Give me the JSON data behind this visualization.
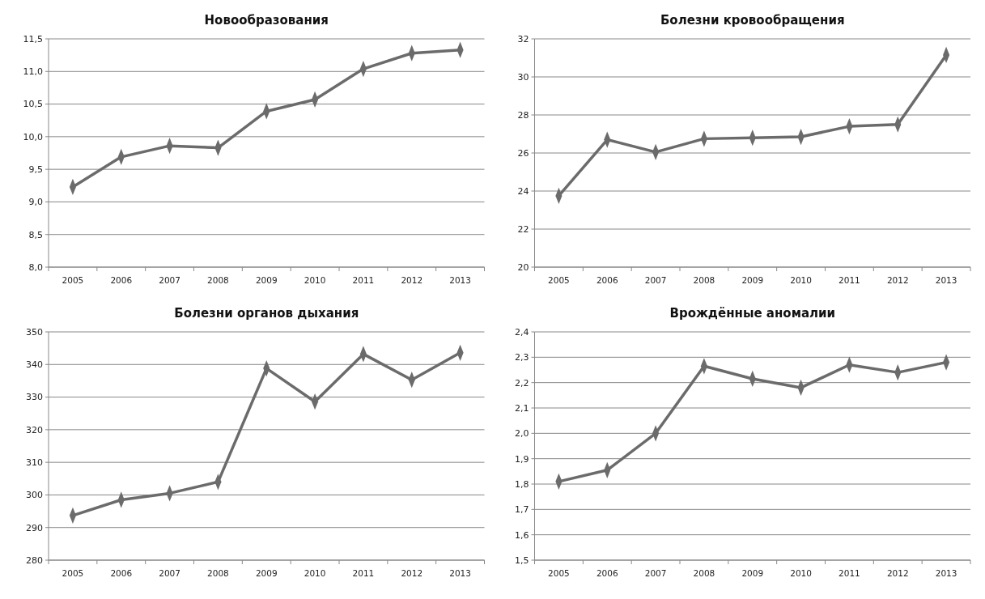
{
  "chart_data": [
    {
      "type": "line",
      "title": "Новообразования",
      "categories": [
        "2005",
        "2006",
        "2007",
        "2008",
        "2009",
        "2010",
        "2011",
        "2012",
        "2013"
      ],
      "series": [
        {
          "color": "#6b6b6b",
          "values": [
            9.23,
            9.69,
            9.86,
            9.83,
            10.39,
            10.57,
            11.04,
            11.28,
            11.33
          ]
        }
      ],
      "ylim": [
        8,
        11.5
      ],
      "yticks": [
        {
          "value": 8,
          "label": "8,0"
        },
        {
          "value": 8.5,
          "label": "8,5"
        },
        {
          "value": 9,
          "label": "9,0"
        },
        {
          "value": 9.5,
          "label": "9,5"
        },
        {
          "value": 10,
          "label": "10,0"
        },
        {
          "value": 10.5,
          "label": "10,5"
        },
        {
          "value": 11,
          "label": "11,0"
        },
        {
          "value": 11.5,
          "label": "11,5"
        }
      ],
      "grid": "y",
      "marker": "diamond",
      "line_style": "solid"
    },
    {
      "type": "line",
      "title": "Болезни кровообращения",
      "categories": [
        "2005",
        "2006",
        "2007",
        "2008",
        "2009",
        "2010",
        "2011",
        "2012",
        "2013"
      ],
      "series": [
        {
          "color": "#6b6b6b",
          "values": [
            23.75,
            26.7,
            26.05,
            26.75,
            26.8,
            26.85,
            27.4,
            27.5,
            31.15
          ]
        }
      ],
      "ylim": [
        20,
        32
      ],
      "yticks": [
        20,
        22,
        24,
        26,
        28,
        30,
        32
      ],
      "grid": "y",
      "marker": "diamond",
      "line_style": "solid"
    },
    {
      "type": "line",
      "title": "Болезни органов дыхания",
      "categories": [
        "2005",
        "2006",
        "2007",
        "2008",
        "2009",
        "2010",
        "2011",
        "2012",
        "2013"
      ],
      "series": [
        {
          "color": "#6b6b6b",
          "values": [
            293.7,
            298.5,
            300.5,
            304,
            338.8,
            328.6,
            343.2,
            335.3,
            343.6
          ]
        }
      ],
      "ylim": [
        280,
        350
      ],
      "yticks": [
        280,
        290,
        300,
        310,
        320,
        330,
        340,
        350
      ],
      "grid": "y",
      "marker": "diamond",
      "line_style": "solid"
    },
    {
      "type": "line",
      "title": "Врождённые аномалии",
      "categories": [
        "2005",
        "2006",
        "2007",
        "2008",
        "2009",
        "2010",
        "2011",
        "2012",
        "2013"
      ],
      "series": [
        {
          "color": "#6b6b6b",
          "values": [
            1.81,
            1.855,
            2.0,
            2.265,
            2.215,
            2.18,
            2.27,
            2.24,
            2.28
          ]
        }
      ],
      "ylim": [
        1.5,
        2.4
      ],
      "yticks": [
        {
          "value": 1.5,
          "label": "1,5"
        },
        {
          "value": 1.6,
          "label": "1,6"
        },
        {
          "value": 1.7,
          "label": "1,7"
        },
        {
          "value": 1.8,
          "label": "1,8"
        },
        {
          "value": 1.9,
          "label": "1,9"
        },
        {
          "value": 2.0,
          "label": "2,0"
        },
        {
          "value": 2.1,
          "label": "2,1"
        },
        {
          "value": 2.2,
          "label": "2,2"
        },
        {
          "value": 2.3,
          "label": "2,3"
        },
        {
          "value": 2.4,
          "label": "2,4"
        }
      ],
      "grid": "y",
      "marker": "diamond",
      "line_style": "solid"
    }
  ]
}
